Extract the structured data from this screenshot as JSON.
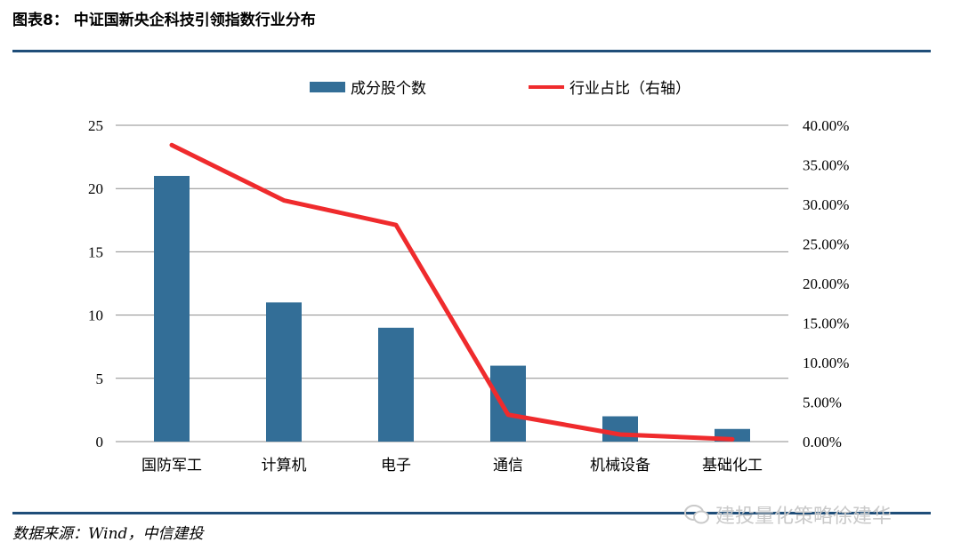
{
  "title": "图表8：  中证国新央企科技引领指数行业分布",
  "source": "数据来源：Wind，中信建投",
  "watermark": "建投量化策略徐建华",
  "colors": {
    "bar": "#336e97",
    "line": "#ef2b2d",
    "rule": "#1f4e79",
    "grid": "#8c8c8c"
  },
  "chart_data": {
    "type": "bar",
    "categories": [
      "国防军工",
      "计算机",
      "电子",
      "通信",
      "机械设备",
      "基础化工"
    ],
    "series": [
      {
        "name": "成分股个数",
        "type": "bar",
        "axis": "left",
        "values": [
          21,
          11,
          9,
          6,
          2,
          1
        ]
      },
      {
        "name": "行业占比（右轴）",
        "type": "line",
        "axis": "right",
        "values": [
          37.5,
          30.5,
          27.4,
          3.4,
          0.9,
          0.3
        ]
      }
    ],
    "ylim_left": [
      0,
      25
    ],
    "yticks_left": [
      "0",
      "5",
      "10",
      "15",
      "20",
      "25"
    ],
    "ylim_right": [
      0,
      40
    ],
    "yticks_right": [
      "0.00%",
      "5.00%",
      "10.00%",
      "15.00%",
      "20.00%",
      "25.00%",
      "30.00%",
      "35.00%",
      "40.00%"
    ],
    "grid": true,
    "legend_position": "top-center"
  }
}
